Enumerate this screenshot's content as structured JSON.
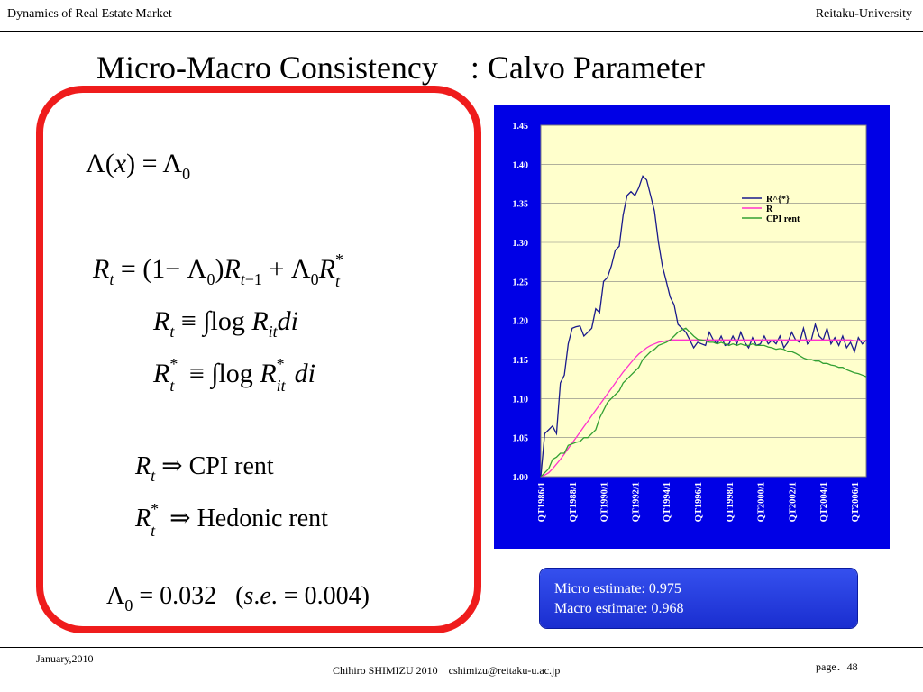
{
  "header": {
    "left": "Dynamics of Real Estate Market",
    "right": "Reitaku-University"
  },
  "title": "Micro-Macro Consistency　: Calvo Parameter",
  "estimates": {
    "micro": "Micro estimate: 0.975",
    "macro": "Macro estimate: 0.968"
  },
  "footer": {
    "date": "January,2010",
    "author": "Chihiro SHIMIZU 2010　cshimizu@reitaku-u.ac.jp",
    "page_label": "page",
    "page_number": "48"
  },
  "equations": {
    "cpi": "CPI rent",
    "hedonic": "Hedonic rent",
    "lambda_value": "0.032",
    "se_value": "0.004"
  },
  "colors": {
    "frame": "#ef1c1c",
    "chart_bg": "#0000e6",
    "plot_bg": "#ffffcc",
    "r_star": "#1a1a8c",
    "r": "#ff33cc",
    "cpi": "#33a033"
  },
  "chart_data": {
    "type": "line",
    "ylim": [
      1.0,
      1.45
    ],
    "yticks": [
      "1.00",
      "1.05",
      "1.10",
      "1.15",
      "1.20",
      "1.25",
      "1.30",
      "1.35",
      "1.40",
      "1.45"
    ],
    "xticks": [
      "QT1986/1",
      "QT1988/1",
      "QT1990/1",
      "QT1992/1",
      "QT1994/1",
      "QT1996/1",
      "QT1998/1",
      "QT2000/1",
      "QT2002/1",
      "QT2004/1",
      "QT2006/1"
    ],
    "n_points": 84,
    "series": [
      {
        "name": "R^{*}",
        "color": "#1a1a8c",
        "values": [
          1.0,
          1.055,
          1.06,
          1.065,
          1.055,
          1.12,
          1.13,
          1.17,
          1.19,
          1.192,
          1.193,
          1.18,
          1.185,
          1.19,
          1.215,
          1.21,
          1.25,
          1.255,
          1.27,
          1.29,
          1.295,
          1.335,
          1.36,
          1.365,
          1.36,
          1.37,
          1.385,
          1.38,
          1.36,
          1.34,
          1.3,
          1.27,
          1.25,
          1.23,
          1.22,
          1.195,
          1.19,
          1.185,
          1.175,
          1.165,
          1.172,
          1.17,
          1.168,
          1.185,
          1.175,
          1.17,
          1.18,
          1.168,
          1.17,
          1.18,
          1.17,
          1.185,
          1.172,
          1.165,
          1.178,
          1.168,
          1.17,
          1.18,
          1.17,
          1.175,
          1.17,
          1.18,
          1.165,
          1.172,
          1.185,
          1.175,
          1.172,
          1.19,
          1.17,
          1.175,
          1.195,
          1.18,
          1.175,
          1.19,
          1.17,
          1.178,
          1.168,
          1.18,
          1.165,
          1.172,
          1.16,
          1.178,
          1.17,
          1.175
        ]
      },
      {
        "name": "R",
        "color": "#ff33cc",
        "values": [
          1.0,
          1.002,
          1.005,
          1.01,
          1.016,
          1.022,
          1.029,
          1.036,
          1.043,
          1.05,
          1.057,
          1.064,
          1.071,
          1.078,
          1.085,
          1.092,
          1.099,
          1.106,
          1.113,
          1.12,
          1.127,
          1.134,
          1.14,
          1.146,
          1.152,
          1.157,
          1.161,
          1.165,
          1.168,
          1.17,
          1.172,
          1.173,
          1.174,
          1.175,
          1.175,
          1.175,
          1.175,
          1.175,
          1.175,
          1.175,
          1.175,
          1.175,
          1.175,
          1.175,
          1.175,
          1.175,
          1.175,
          1.175,
          1.175,
          1.175,
          1.175,
          1.175,
          1.175,
          1.175,
          1.175,
          1.175,
          1.175,
          1.175,
          1.175,
          1.175,
          1.175,
          1.175,
          1.175,
          1.175,
          1.175,
          1.175,
          1.175,
          1.175,
          1.175,
          1.175,
          1.175,
          1.175,
          1.175,
          1.175,
          1.175,
          1.175,
          1.175,
          1.175,
          1.175,
          1.175,
          1.174,
          1.174,
          1.174,
          1.174
        ]
      },
      {
        "name": "CPI rent",
        "color": "#33a033",
        "values": [
          1.0,
          1.005,
          1.01,
          1.022,
          1.025,
          1.03,
          1.03,
          1.04,
          1.042,
          1.044,
          1.045,
          1.05,
          1.05,
          1.055,
          1.06,
          1.075,
          1.085,
          1.095,
          1.1,
          1.105,
          1.11,
          1.12,
          1.125,
          1.13,
          1.135,
          1.14,
          1.15,
          1.155,
          1.16,
          1.163,
          1.168,
          1.17,
          1.172,
          1.175,
          1.18,
          1.185,
          1.188,
          1.19,
          1.185,
          1.18,
          1.176,
          1.175,
          1.174,
          1.172,
          1.172,
          1.17,
          1.172,
          1.17,
          1.168,
          1.17,
          1.168,
          1.17,
          1.168,
          1.168,
          1.17,
          1.168,
          1.168,
          1.168,
          1.166,
          1.165,
          1.163,
          1.164,
          1.163,
          1.16,
          1.16,
          1.158,
          1.155,
          1.152,
          1.15,
          1.15,
          1.148,
          1.148,
          1.145,
          1.145,
          1.143,
          1.142,
          1.14,
          1.14,
          1.137,
          1.135,
          1.133,
          1.132,
          1.13,
          1.128
        ]
      }
    ]
  }
}
